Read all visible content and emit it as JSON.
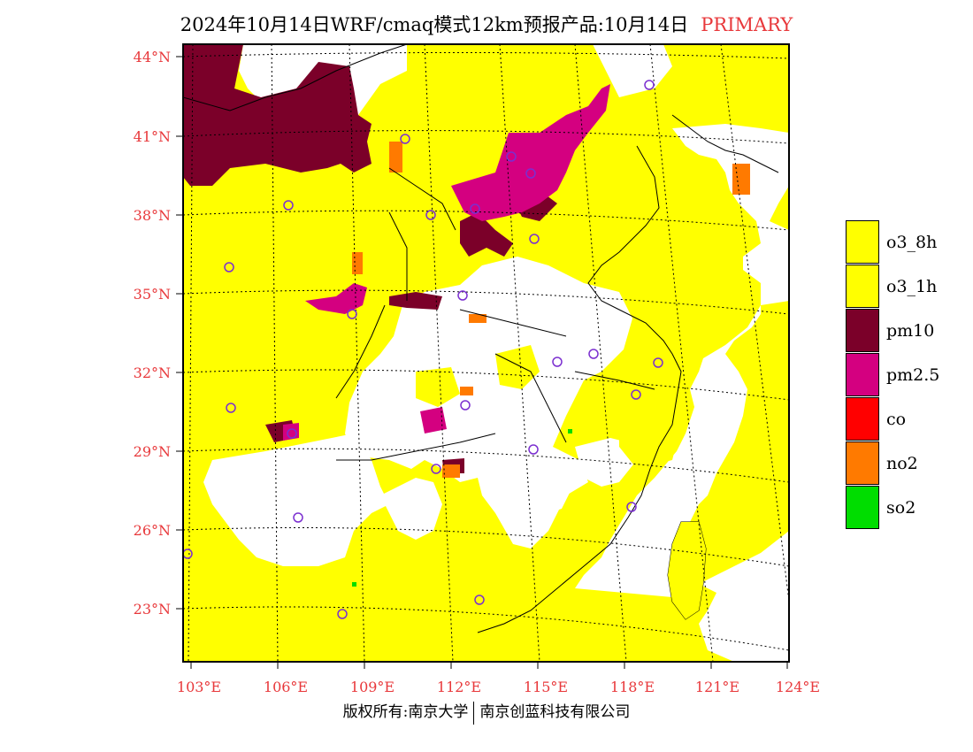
{
  "title": {
    "text": "2024年10月14日WRF/cmaq模式12km预报产品:10月14日",
    "tag": "PRIMARY",
    "tag_color": "#e8383b"
  },
  "map": {
    "lat_labels": [
      "44°N",
      "41°N",
      "38°N",
      "35°N",
      "32°N",
      "29°N",
      "26°N",
      "23°N"
    ],
    "lon_labels": [
      "103°E",
      "106°E",
      "109°E",
      "112°E",
      "115°E",
      "118°E",
      "121°E",
      "124°E"
    ],
    "background_color": "#ffff00",
    "clean_color": "#ffffff"
  },
  "legend": {
    "items": [
      {
        "label": "o3_8h",
        "color": "#ffff00"
      },
      {
        "label": "o3_1h",
        "color": "#ffff00"
      },
      {
        "label": "pm10",
        "color": "#7b0029"
      },
      {
        "label": "pm2.5",
        "color": "#d40080"
      },
      {
        "label": "co",
        "color": "#ff0000"
      },
      {
        "label": "no2",
        "color": "#ff7a00"
      },
      {
        "label": "so2",
        "color": "#00dd00"
      }
    ]
  },
  "footer": {
    "left": "版权所有:南京大学",
    "right": "南京创蓝科技有限公司"
  }
}
